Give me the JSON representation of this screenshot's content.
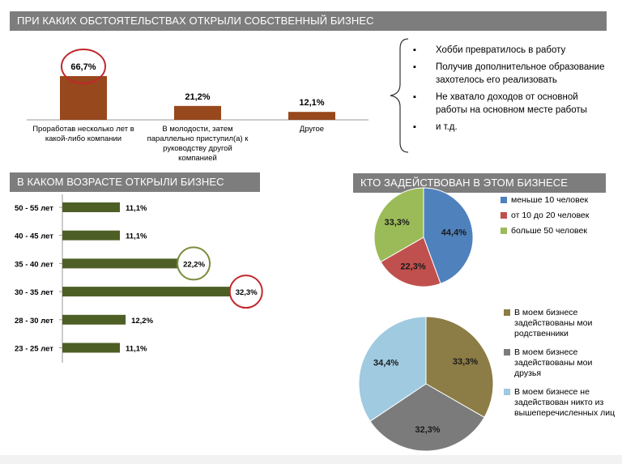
{
  "headers": {
    "top": "ПРИ КАКИХ ОБСТОЯТЕЛЬСТВАХ ОТКРЫЛИ СОБСТВЕННЫЙ БИЗНЕС",
    "age": "В КАКОМ ВОЗРАСТЕ ОТКРЫЛИ БИЗНЕС",
    "involved": "КТО ЗАДЕЙСТВОВАН В ЭТОМ БИЗНЕСЕ"
  },
  "colors": {
    "header_bg": "#7d7d7d",
    "brown": "#97481c",
    "olive": "#4e5f26",
    "highlight_red": "#c0282d",
    "highlight_green": "#7a8c3c",
    "pie_blue": "#4f81bd",
    "pie_red": "#c0504d",
    "pie_green": "#9bbb59",
    "pie_olive": "#8c7c45",
    "pie_gray": "#7b7b7b",
    "pie_lightblue": "#9fcae0"
  },
  "bullets": [
    "Хобби превратилось в работу",
    "Получив дополнительное образование захотелось его реализовать",
    "Не хватало доходов от основной работы на основном месте работы",
    "и т.д."
  ],
  "chart_data": [
    {
      "type": "bar",
      "categories": [
        [
          "Проработав несколько лет в",
          "какой-либо компании"
        ],
        [
          "В молодости, затем",
          "параллельно приступил(а) к",
          "руководству другой",
          "компанией"
        ],
        [
          "Другое"
        ]
      ],
      "values": [
        66.7,
        21.2,
        12.1
      ],
      "labels": [
        "66,7%",
        "21,2%",
        "12,1%"
      ],
      "highlight_index": 0,
      "ylim": [
        0,
        70
      ]
    },
    {
      "type": "bar",
      "orientation": "horizontal",
      "categories": [
        "50 - 55 лет",
        "40 - 45 лет",
        "35 - 40 лет",
        "30 - 35 лет",
        "28 - 30 лет",
        "23 - 25 лет"
      ],
      "values": [
        11.1,
        11.1,
        22.2,
        32.3,
        12.2,
        11.1
      ],
      "labels": [
        "11,1%",
        "11,1%",
        "22,2%",
        "32,3%",
        "12,2%",
        "11,1%"
      ],
      "highlight": {
        "2": "green",
        "3": "red"
      },
      "xlim": [
        0,
        35
      ]
    },
    {
      "type": "pie",
      "categories": [
        "меньше 10 человек",
        "от 10 до 20 человек",
        "больше 50 человек"
      ],
      "values": [
        44.4,
        22.3,
        33.3
      ],
      "labels": [
        "44,4%",
        "22,3%",
        "33,3%"
      ],
      "colors": [
        "#4f81bd",
        "#c0504d",
        "#9bbb59"
      ],
      "legend": "right"
    },
    {
      "type": "pie",
      "categories": [
        "В моем бизнесе задействованы мои родственники",
        "В моем бизнесе задействованы мои друзья",
        "В моем бизнесе не задействован никто из вышеперечисленных лиц"
      ],
      "values": [
        33.3,
        32.3,
        34.4
      ],
      "labels": [
        "33,3%",
        "32,3%",
        "34,4%"
      ],
      "colors": [
        "#8c7c45",
        "#7b7b7b",
        "#9fcae0"
      ],
      "legend": "right"
    }
  ],
  "legend_text": {
    "pie1": [
      "меньше 10 человек",
      "от 10 до 20 человек",
      "больше 50 человек"
    ],
    "pie2": [
      "В моем бизнесе задействованы мои родственники",
      "В моем бизнесе задействованы мои друзья",
      "В моем бизнесе не задействован никто из вышеперечисленных лиц"
    ]
  }
}
